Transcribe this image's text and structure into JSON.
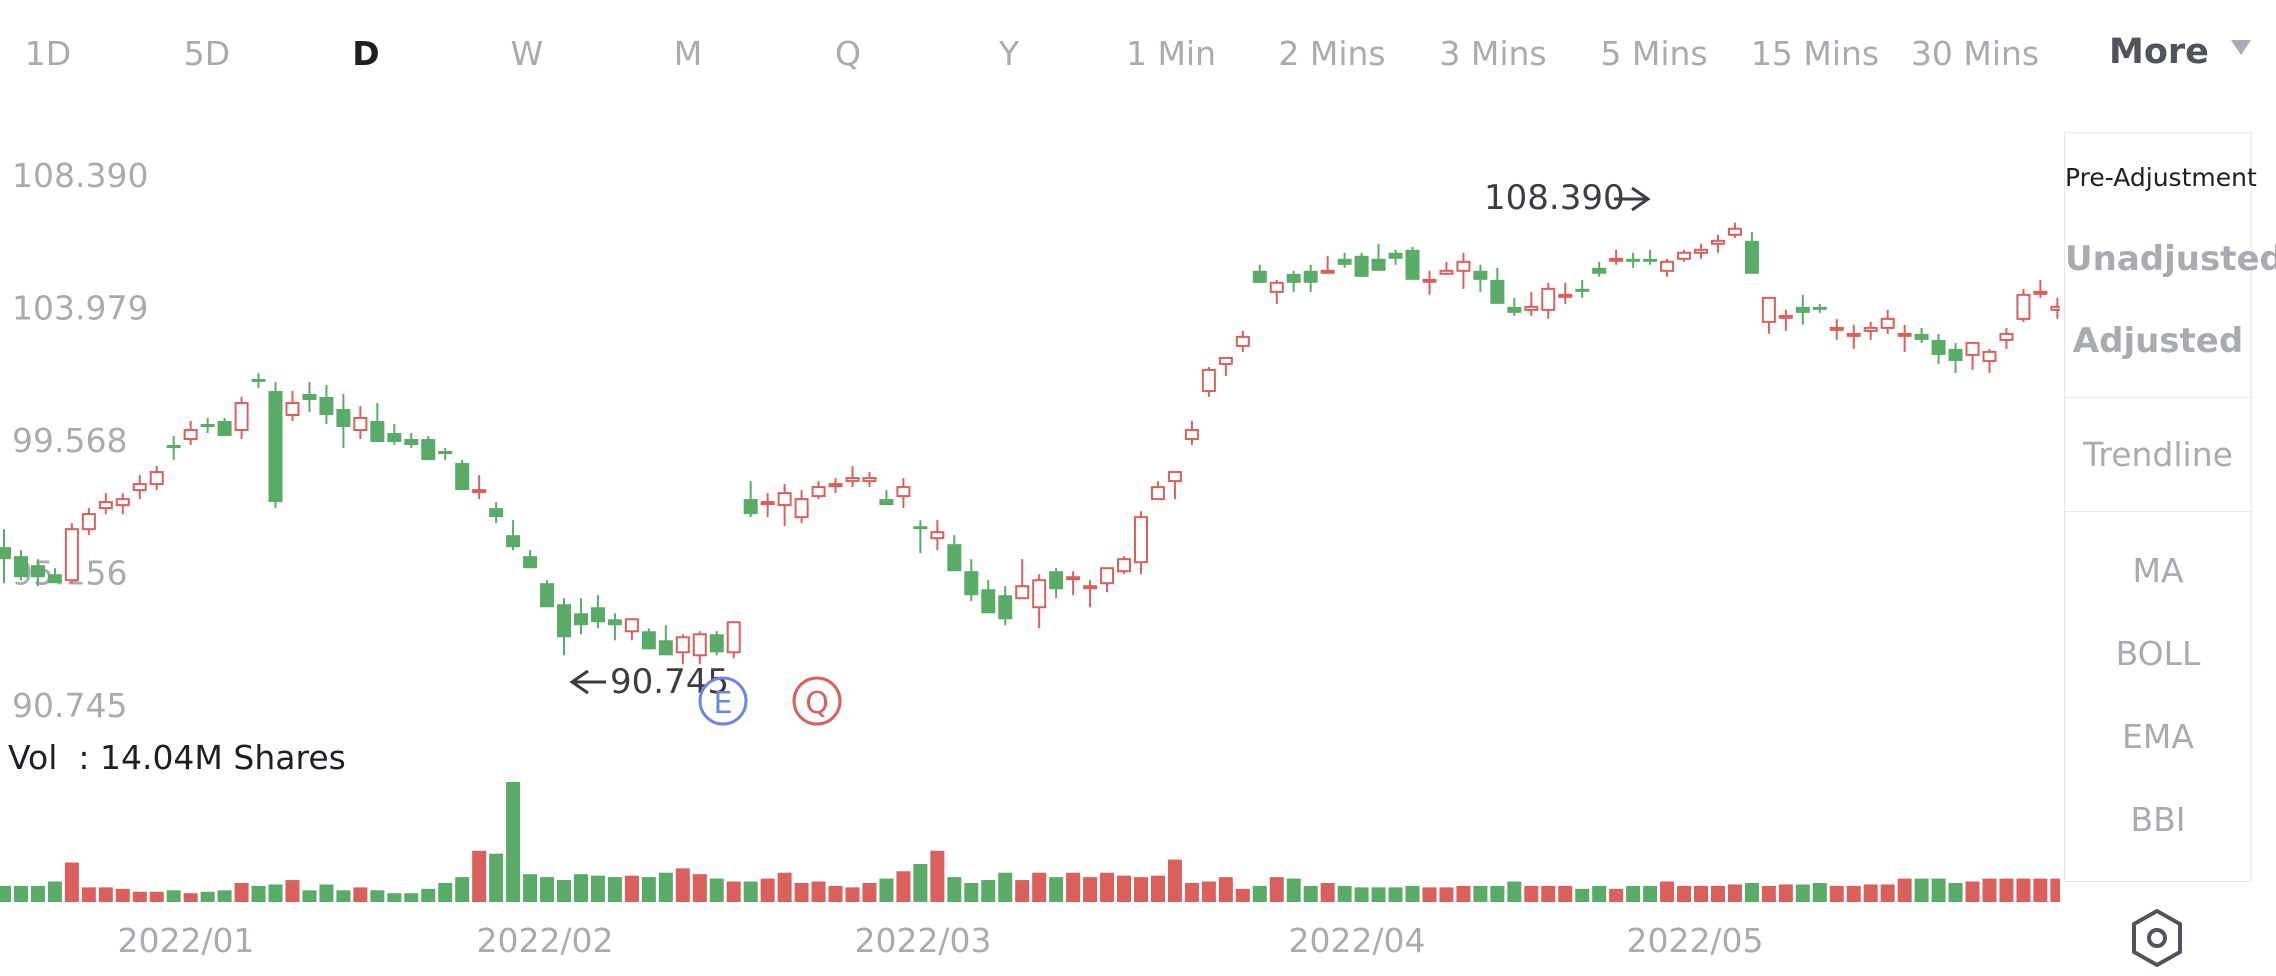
{
  "tabs": [
    {
      "label": "1D"
    },
    {
      "label": "5D"
    },
    {
      "label": "D",
      "active": true
    },
    {
      "label": "W"
    },
    {
      "label": "M"
    },
    {
      "label": "Q"
    },
    {
      "label": "Y"
    },
    {
      "label": "1 Min"
    },
    {
      "label": "2 Mins"
    },
    {
      "label": "3 Mins"
    },
    {
      "label": "5 Mins"
    },
    {
      "label": "15 Mins"
    },
    {
      "label": "30 Mins"
    }
  ],
  "more_label": "More",
  "price_axis": [
    "108.390",
    "103.979",
    "99.568",
    "95.156",
    "90.745"
  ],
  "annotations": {
    "high": "108.390",
    "low": "90.745"
  },
  "event_markers": [
    "E",
    "Q"
  ],
  "volume_label": "Vol  : 14.04M Shares",
  "side_panel": {
    "pre_adjustment": "Pre-Adjustment",
    "unadjusted": "Unadjusted",
    "adjusted": "Adjusted",
    "trendline": "Trendline",
    "indicators": [
      "MA",
      "BOLL",
      "EMA",
      "BBI"
    ]
  },
  "colors": {
    "up": "#d9605c",
    "down": "#5aaa68",
    "grid_text": "#a8abb1",
    "marker_e": "#6f86e0",
    "marker_q": "#d9605c"
  },
  "chart_data": {
    "type": "candlestick",
    "x_ticks": [
      "2022/01",
      "2022/02",
      "2022/03",
      "2022/04",
      "2022/05"
    ],
    "y_ticks": [
      108.39,
      103.979,
      99.568,
      95.156,
      90.745
    ],
    "ylim": [
      90.745,
      108.39
    ],
    "series": [
      {
        "name": "Price",
        "ohlc": [
          [
            96.0,
            96.6,
            94.8,
            95.6
          ],
          [
            95.7,
            95.9,
            94.9,
            95.0
          ],
          [
            95.4,
            95.6,
            94.7,
            95.0
          ],
          [
            95.1,
            95.3,
            94.8,
            94.8
          ],
          [
            94.9,
            96.8,
            94.8,
            96.6
          ],
          [
            96.6,
            97.3,
            96.4,
            97.1
          ],
          [
            97.3,
            97.8,
            97.1,
            97.5
          ],
          [
            97.4,
            97.8,
            97.1,
            97.6
          ],
          [
            97.9,
            98.4,
            97.6,
            98.1
          ],
          [
            98.1,
            98.7,
            97.9,
            98.5
          ],
          [
            99.4,
            99.7,
            98.9,
            99.3
          ],
          [
            99.6,
            100.2,
            99.4,
            99.9
          ],
          [
            100.1,
            100.3,
            99.8,
            100.0
          ],
          [
            100.2,
            100.3,
            99.7,
            99.7
          ],
          [
            99.9,
            101.0,
            99.6,
            100.8
          ],
          [
            101.6,
            101.8,
            101.3,
            101.5
          ],
          [
            101.2,
            101.5,
            97.3,
            97.5
          ],
          [
            100.4,
            101.2,
            100.2,
            100.8
          ],
          [
            101.1,
            101.5,
            100.5,
            100.9
          ],
          [
            101.0,
            101.4,
            100.1,
            100.4
          ],
          [
            100.6,
            101.1,
            99.3,
            100.0
          ],
          [
            99.9,
            100.7,
            99.6,
            100.3
          ],
          [
            100.2,
            100.8,
            99.5,
            99.5
          ],
          [
            99.8,
            100.1,
            99.4,
            99.5
          ],
          [
            99.6,
            99.8,
            99.3,
            99.4
          ],
          [
            99.6,
            99.7,
            98.9,
            98.9
          ],
          [
            99.2,
            99.3,
            98.9,
            99.1
          ],
          [
            98.8,
            98.9,
            97.9,
            97.9
          ],
          [
            97.9,
            98.4,
            97.6,
            97.9
          ],
          [
            97.3,
            97.5,
            96.8,
            97.0
          ],
          [
            96.4,
            96.9,
            95.9,
            96.0
          ],
          [
            95.7,
            95.9,
            95.3,
            95.3
          ],
          [
            94.8,
            94.9,
            94.0,
            94.0
          ],
          [
            94.1,
            94.3,
            92.4,
            93.0
          ],
          [
            93.8,
            94.3,
            93.1,
            93.4
          ],
          [
            94.0,
            94.4,
            93.3,
            93.5
          ],
          [
            93.6,
            93.8,
            92.9,
            93.4
          ],
          [
            93.2,
            93.6,
            92.9,
            93.6
          ],
          [
            93.2,
            93.3,
            92.6,
            92.6
          ],
          [
            92.9,
            93.4,
            92.4,
            92.4
          ],
          [
            92.5,
            93.1,
            92.1,
            93.0
          ],
          [
            92.4,
            93.2,
            92.1,
            93.1
          ],
          [
            93.1,
            93.2,
            92.4,
            92.5
          ],
          [
            92.5,
            93.5,
            92.3,
            93.5
          ],
          [
            97.6,
            98.2,
            97.0,
            97.1
          ],
          [
            97.5,
            97.8,
            97.0,
            97.5
          ],
          [
            97.4,
            98.1,
            96.7,
            97.8
          ],
          [
            97.0,
            97.9,
            96.8,
            97.6
          ],
          [
            97.7,
            98.2,
            97.6,
            98.0
          ],
          [
            98.1,
            98.3,
            97.8,
            98.1
          ],
          [
            98.2,
            98.7,
            98.0,
            98.3
          ],
          [
            98.2,
            98.5,
            98.0,
            98.3
          ],
          [
            97.6,
            97.9,
            97.4,
            97.4
          ],
          [
            97.7,
            98.3,
            97.3,
            98.0
          ],
          [
            96.7,
            96.9,
            95.8,
            96.6
          ],
          [
            96.3,
            96.9,
            95.9,
            96.5
          ],
          [
            96.1,
            96.4,
            95.2,
            95.2
          ],
          [
            95.2,
            95.6,
            94.2,
            94.4
          ],
          [
            94.6,
            94.9,
            93.8,
            93.8
          ],
          [
            94.4,
            94.7,
            93.4,
            93.6
          ],
          [
            94.3,
            95.6,
            94.3,
            94.7
          ],
          [
            94.0,
            95.1,
            93.3,
            94.9
          ],
          [
            95.2,
            95.3,
            94.3,
            94.6
          ],
          [
            95.0,
            95.2,
            94.4,
            95.0
          ],
          [
            94.7,
            94.9,
            94.0,
            94.7
          ],
          [
            94.8,
            95.2,
            94.5,
            95.3
          ],
          [
            95.2,
            95.7,
            95.1,
            95.6
          ],
          [
            95.5,
            97.2,
            95.1,
            97.0
          ],
          [
            97.6,
            98.2,
            97.6,
            98.0
          ],
          [
            98.2,
            98.5,
            97.6,
            98.5
          ],
          [
            99.6,
            100.2,
            99.4,
            99.9
          ],
          [
            101.2,
            102.0,
            101.0,
            101.9
          ],
          [
            102.1,
            102.3,
            101.7,
            102.3
          ],
          [
            102.7,
            103.2,
            102.5,
            103.0
          ],
          [
            105.2,
            105.4,
            104.8,
            104.8
          ],
          [
            104.5,
            104.9,
            104.1,
            104.8
          ],
          [
            105.1,
            105.2,
            104.5,
            104.8
          ],
          [
            105.2,
            105.4,
            104.5,
            104.8
          ],
          [
            105.2,
            105.7,
            105.2,
            105.2
          ],
          [
            105.6,
            105.8,
            105.3,
            105.4
          ],
          [
            105.7,
            105.8,
            105.0,
            105.0
          ],
          [
            105.6,
            106.1,
            105.3,
            105.2
          ],
          [
            105.8,
            105.9,
            105.4,
            105.6
          ],
          [
            105.9,
            106.0,
            104.9,
            104.9
          ],
          [
            104.9,
            105.2,
            104.4,
            104.9
          ],
          [
            105.1,
            105.5,
            105.1,
            105.2
          ],
          [
            105.2,
            105.8,
            104.6,
            105.5
          ],
          [
            105.2,
            105.4,
            104.5,
            104.9
          ],
          [
            104.9,
            105.3,
            104.1,
            104.1
          ],
          [
            104.0,
            104.3,
            103.7,
            103.8
          ],
          [
            103.9,
            104.5,
            103.7,
            104.0
          ],
          [
            103.9,
            104.8,
            103.6,
            104.6
          ],
          [
            104.4,
            104.8,
            104.1,
            104.4
          ],
          [
            104.6,
            104.9,
            104.3,
            104.5
          ],
          [
            105.3,
            105.5,
            105.0,
            105.1
          ],
          [
            105.6,
            105.9,
            105.4,
            105.6
          ],
          [
            105.6,
            105.8,
            105.3,
            105.5
          ],
          [
            105.6,
            105.9,
            105.4,
            105.5
          ],
          [
            105.2,
            105.6,
            105.0,
            105.5
          ],
          [
            105.6,
            105.9,
            105.5,
            105.8
          ],
          [
            105.8,
            106.1,
            105.6,
            105.9
          ],
          [
            106.1,
            106.4,
            105.8,
            106.2
          ],
          [
            106.4,
            106.8,
            106.3,
            106.6
          ],
          [
            106.2,
            106.5,
            105.1,
            105.1
          ],
          [
            103.5,
            104.3,
            103.1,
            104.3
          ],
          [
            103.7,
            103.9,
            103.2,
            103.7
          ],
          [
            104.0,
            104.4,
            103.4,
            103.8
          ],
          [
            104.0,
            104.1,
            103.8,
            103.9
          ],
          [
            103.3,
            103.6,
            102.9,
            103.3
          ],
          [
            103.1,
            103.4,
            102.6,
            103.1
          ],
          [
            103.2,
            103.5,
            102.9,
            103.3
          ],
          [
            103.3,
            103.9,
            103.1,
            103.6
          ],
          [
            103.1,
            103.4,
            102.5,
            103.1
          ],
          [
            103.1,
            103.3,
            102.8,
            102.9
          ],
          [
            102.9,
            103.1,
            102.1,
            102.4
          ],
          [
            102.6,
            102.8,
            101.8,
            102.2
          ],
          [
            102.4,
            102.8,
            101.9,
            102.8
          ],
          [
            102.2,
            102.6,
            101.8,
            102.5
          ],
          [
            102.9,
            103.3,
            102.6,
            103.1
          ],
          [
            103.6,
            104.6,
            103.5,
            104.4
          ],
          [
            104.5,
            104.9,
            104.3,
            104.5
          ],
          [
            103.9,
            104.3,
            103.6,
            104.0
          ],
          [
            104.2,
            104.7,
            103.9,
            104.5
          ]
        ]
      },
      {
        "name": "Vol",
        "values": [
          1.1,
          1.1,
          1.1,
          1.4,
          2.7,
          1.0,
          1.0,
          0.9,
          0.7,
          0.7,
          0.8,
          0.6,
          0.7,
          0.8,
          1.3,
          1.1,
          1.2,
          1.5,
          0.8,
          1.2,
          0.8,
          1.0,
          0.8,
          0.6,
          0.6,
          0.9,
          1.3,
          1.7,
          3.5,
          3.3,
          8.2,
          1.9,
          1.7,
          1.5,
          1.9,
          1.8,
          1.7,
          1.8,
          1.7,
          2.0,
          2.3,
          1.9,
          1.6,
          1.4,
          1.4,
          1.6,
          2.0,
          1.3,
          1.4,
          1.1,
          1.0,
          1.3,
          1.6,
          2.1,
          2.6,
          3.5,
          1.7,
          1.3,
          1.5,
          2.0,
          1.5,
          2.0,
          1.7,
          2.0,
          1.7,
          2.0,
          1.8,
          1.7,
          1.8,
          2.9,
          1.3,
          1.4,
          1.7,
          0.9,
          1.1,
          1.7,
          1.6,
          1.1,
          1.3,
          1.1,
          1.0,
          1.0,
          1.0,
          1.1,
          1.0,
          1.0,
          1.1,
          1.1,
          1.1,
          1.4,
          1.1,
          1.1,
          1.1,
          0.9,
          1.1,
          0.9,
          1.1,
          1.1,
          1.4,
          1.1,
          1.1,
          1.1,
          1.2,
          1.3,
          1.1,
          1.2,
          1.2,
          1.3,
          1.1,
          1.1,
          1.2,
          1.2,
          1.6,
          1.6,
          1.6,
          1.3,
          1.4,
          1.6,
          1.6,
          1.6,
          1.6,
          1.6,
          1.6
        ]
      }
    ]
  }
}
